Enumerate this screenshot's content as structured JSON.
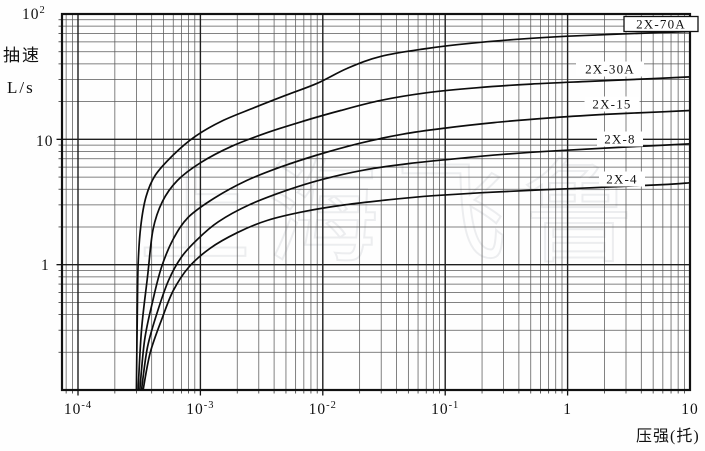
{
  "figure": {
    "y_axis_title": "抽速",
    "y_axis_unit": "L/s",
    "x_axis_title": "压强(托)",
    "watermark": "上海飞鲁"
  },
  "chart_data": {
    "type": "line",
    "x_scale": "log",
    "y_scale": "log",
    "xlabel": "压强(托)",
    "ylabel": "抽速 L/s",
    "xlim": [
      7.4e-05,
      10
    ],
    "ylim": [
      0.1,
      100
    ],
    "grid": "log-log full grid (decades + 2-9 minors)",
    "legend_position": "inline labels at right of each curve",
    "x_ticks": [
      {
        "base": "10",
        "exp": "-4",
        "value": 0.0001
      },
      {
        "base": "10",
        "exp": "-3",
        "value": 0.001
      },
      {
        "base": "10",
        "exp": "-2",
        "value": 0.01
      },
      {
        "base": "10",
        "exp": "-1",
        "value": 0.1
      },
      {
        "base": "1",
        "exp": "",
        "value": 1
      },
      {
        "base": "10",
        "exp": "",
        "value": 10
      }
    ],
    "y_ticks": [
      {
        "base": "10",
        "exp": "2",
        "value": 100
      },
      {
        "base": "10",
        "exp": "",
        "value": 10
      },
      {
        "base": "1",
        "exp": "",
        "value": 1
      }
    ],
    "series": [
      {
        "name": "2X-70A",
        "boxed_label": true,
        "points": [
          [
            0.0003,
            0.1
          ],
          [
            0.000305,
            0.4
          ],
          [
            0.00031,
            1.0
          ],
          [
            0.000325,
            2.0
          ],
          [
            0.00036,
            3.5
          ],
          [
            0.00043,
            5.2
          ],
          [
            0.0006,
            7.5
          ],
          [
            0.0009,
            10.5
          ],
          [
            0.0015,
            14
          ],
          [
            0.0028,
            18
          ],
          [
            0.005,
            22.5
          ],
          [
            0.009,
            28
          ],
          [
            0.016,
            37
          ],
          [
            0.03,
            46
          ],
          [
            0.07,
            53
          ],
          [
            0.15,
            58
          ],
          [
            0.4,
            63
          ],
          [
            1,
            66.5
          ],
          [
            3,
            69.5
          ],
          [
            10,
            72.5
          ]
        ]
      },
      {
        "name": "2X-30A",
        "boxed_label": false,
        "points": [
          [
            0.00031,
            0.1
          ],
          [
            0.00033,
            0.3
          ],
          [
            0.00037,
            0.8
          ],
          [
            0.00041,
            1.9
          ],
          [
            0.00049,
            3.2
          ],
          [
            0.00065,
            4.7
          ],
          [
            0.001,
            6.5
          ],
          [
            0.0018,
            8.8
          ],
          [
            0.0035,
            11.3
          ],
          [
            0.007,
            14
          ],
          [
            0.014,
            17
          ],
          [
            0.03,
            20.5
          ],
          [
            0.07,
            23.5
          ],
          [
            0.18,
            25.8
          ],
          [
            0.5,
            27.6
          ],
          [
            1.5,
            29
          ],
          [
            5,
            30.5
          ],
          [
            10,
            31.5
          ]
        ]
      },
      {
        "name": "2X-15",
        "boxed_label": false,
        "points": [
          [
            0.00032,
            0.1
          ],
          [
            0.00035,
            0.25
          ],
          [
            0.000405,
            0.5
          ],
          [
            0.00048,
            0.95
          ],
          [
            0.0006,
            1.6
          ],
          [
            0.0008,
            2.4
          ],
          [
            0.0013,
            3.4
          ],
          [
            0.0024,
            4.7
          ],
          [
            0.0045,
            6
          ],
          [
            0.009,
            7.5
          ],
          [
            0.02,
            9.3
          ],
          [
            0.045,
            11
          ],
          [
            0.1,
            12.3
          ],
          [
            0.25,
            13.6
          ],
          [
            0.7,
            14.8
          ],
          [
            2,
            15.8
          ],
          [
            6,
            16.6
          ],
          [
            10,
            17
          ]
        ]
      },
      {
        "name": "2X-8",
        "boxed_label": false,
        "points": [
          [
            0.00033,
            0.1
          ],
          [
            0.00037,
            0.22
          ],
          [
            0.000445,
            0.42
          ],
          [
            0.00055,
            0.75
          ],
          [
            0.0007,
            1.15
          ],
          [
            0.00095,
            1.6
          ],
          [
            0.0014,
            2.2
          ],
          [
            0.0025,
            3.0
          ],
          [
            0.005,
            3.9
          ],
          [
            0.01,
            4.8
          ],
          [
            0.022,
            5.7
          ],
          [
            0.05,
            6.4
          ],
          [
            0.12,
            7.0
          ],
          [
            0.3,
            7.6
          ],
          [
            0.8,
            8.1
          ],
          [
            2.5,
            8.6
          ],
          [
            10,
            9.2
          ]
        ]
      },
      {
        "name": "2X-4",
        "boxed_label": false,
        "points": [
          [
            0.00034,
            0.1
          ],
          [
            0.00039,
            0.2
          ],
          [
            0.00049,
            0.38
          ],
          [
            0.0006,
            0.62
          ],
          [
            0.0008,
            0.95
          ],
          [
            0.0012,
            1.35
          ],
          [
            0.002,
            1.8
          ],
          [
            0.0035,
            2.25
          ],
          [
            0.007,
            2.65
          ],
          [
            0.015,
            3.0
          ],
          [
            0.035,
            3.3
          ],
          [
            0.08,
            3.55
          ],
          [
            0.2,
            3.75
          ],
          [
            0.6,
            3.95
          ],
          [
            2,
            4.15
          ],
          [
            6,
            4.35
          ],
          [
            10,
            4.5
          ]
        ]
      }
    ]
  }
}
